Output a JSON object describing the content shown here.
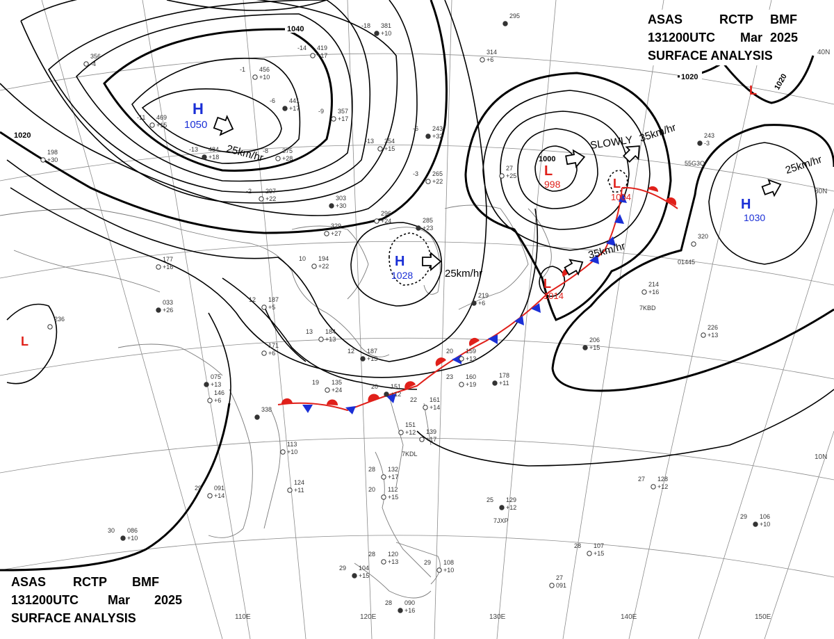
{
  "header_top": {
    "line1": [
      "ASAS",
      "RCTP",
      "BMF"
    ],
    "line2": [
      "131200UTC",
      "Mar",
      "2025"
    ],
    "line3": "SURFACE ANALYSIS"
  },
  "header_bottom": {
    "line1": [
      "ASAS",
      "RCTP",
      "BMF"
    ],
    "line2": [
      "131200UTC",
      "Mar",
      "2025"
    ],
    "line3": "SURFACE ANALYSIS"
  },
  "lat_labels": [
    "40N",
    "30N",
    "10N"
  ],
  "lon_labels": [
    "110E",
    "120E",
    "130E",
    "140E",
    "150E"
  ],
  "isobar_labels": [
    "1040",
    "1020",
    "1020",
    "1020",
    "1000"
  ],
  "colors": {
    "high": "#1a2fd6",
    "low": "#e0201a",
    "warm_front": "#e0201a",
    "cold_front": "#1a2fd6",
    "isobar": "#000000"
  },
  "pressure_centers": [
    {
      "type": "H",
      "value": "1050"
    },
    {
      "type": "H",
      "value": "1028"
    },
    {
      "type": "H",
      "value": "1030"
    },
    {
      "type": "L",
      "value": "998"
    },
    {
      "type": "L",
      "value": "1004"
    },
    {
      "type": "L",
      "value": "1014"
    },
    {
      "type": "L",
      "value": ""
    },
    {
      "type": "L",
      "value": ""
    }
  ],
  "motions": [
    "25km/hr",
    "SLOWLY",
    "35km/hr",
    "25km/hr",
    "25km/hr",
    "35km/hr"
  ],
  "stations": [
    [
      "-18",
      "381",
      "+10"
    ],
    [
      "-14",
      "419",
      "+17"
    ],
    [
      "-1",
      "456",
      "+10"
    ],
    [
      "-6",
      "441",
      "+17"
    ],
    [
      "-9",
      "357",
      "+17"
    ],
    [
      "-11",
      "469",
      "+15"
    ],
    [
      "-13",
      "484",
      "+18"
    ],
    [
      "-8",
      "375",
      "+28"
    ],
    [
      "-13",
      "354",
      "+15"
    ],
    [
      "-6",
      "243",
      "+32"
    ],
    [
      "-3",
      "265",
      "+22"
    ],
    [
      "-2",
      "297",
      "+22"
    ],
    [
      "303",
      "+30"
    ],
    [
      "329",
      "+27"
    ],
    [
      "296",
      "+24"
    ],
    [
      "285",
      "+23"
    ],
    [
      "10",
      "194",
      "+22"
    ],
    [
      "177",
      "+16"
    ],
    [
      "033",
      "+26"
    ],
    [
      "12",
      "187",
      "+5"
    ],
    [
      "13",
      "184",
      "+13"
    ],
    [
      "12",
      "187",
      "+13"
    ],
    [
      "20",
      "159",
      "+13"
    ],
    [
      "19",
      "135",
      "+24"
    ],
    [
      "20",
      "151",
      "+12"
    ],
    [
      "22",
      "161",
      "+14"
    ],
    [
      "23",
      "160",
      "+19"
    ],
    [
      "178",
      "+11"
    ],
    [
      "151",
      "+12"
    ],
    [
      "139",
      "+17"
    ],
    [
      "206",
      "+15"
    ],
    [
      "214",
      "+16"
    ],
    [
      "226",
      "+13"
    ],
    [
      "243",
      "-3"
    ],
    [
      "320"
    ],
    [
      "27",
      "128",
      "+12"
    ],
    [
      "25",
      "129",
      "+12"
    ],
    [
      "28",
      "132",
      "+17"
    ],
    [
      "20",
      "112",
      "+15"
    ],
    [
      "29",
      "104",
      "+15"
    ],
    [
      "28",
      "120",
      "+13"
    ],
    [
      "29",
      "108",
      "+10"
    ],
    [
      "28",
      "090",
      "+16"
    ],
    [
      "27",
      "091"
    ],
    [
      "28",
      "107",
      "+15"
    ],
    [
      "29",
      "106",
      "+10"
    ],
    [
      "124",
      "+11"
    ],
    [
      "29",
      "091",
      "+14"
    ],
    [
      "30",
      "086",
      "+10"
    ],
    [
      "113",
      "+10"
    ],
    [
      "236"
    ],
    [
      "338"
    ],
    [
      "146",
      "+6"
    ],
    [
      "171",
      "+6"
    ],
    [
      "075",
      "+13"
    ],
    [
      "356",
      "-4"
    ],
    [
      "198",
      "+30"
    ],
    [
      "295"
    ],
    [
      "314",
      "+6"
    ],
    [
      "27",
      "+25"
    ],
    [
      "219",
      "+6"
    ]
  ],
  "station_ids": [
    "7KDL",
    "7JXP",
    "7KBD",
    "55G3Q",
    "01445"
  ]
}
